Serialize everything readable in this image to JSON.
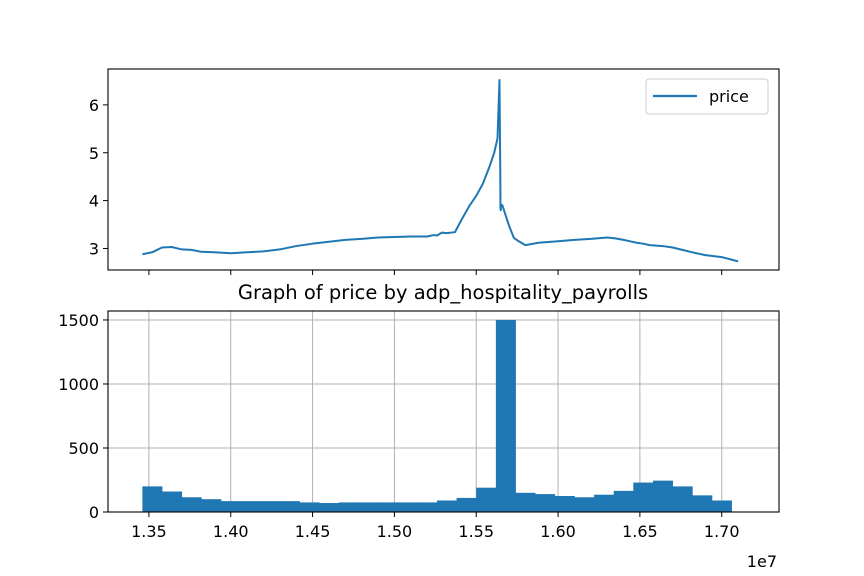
{
  "chart_data": [
    {
      "type": "line",
      "title": "",
      "xlabel": "",
      "ylabel": "",
      "ylim": [
        2.55,
        6.75
      ],
      "yticks": [
        3,
        4,
        5,
        6
      ],
      "ytick_labels": [
        "3",
        "4",
        "5",
        "6"
      ],
      "xlim": [
        13250000,
        17350000
      ],
      "xticks": [
        13500000,
        14000000,
        14500000,
        15000000,
        15500000,
        16000000,
        16500000,
        17000000
      ],
      "xtick_labels_visible": false,
      "grid": false,
      "legend": {
        "placement": "top-right",
        "entries": [
          "price"
        ]
      },
      "series": [
        {
          "name": "price",
          "color": "#1f77b4",
          "x": [
            13460000,
            13520000,
            13580000,
            13640000,
            13700000,
            13760000,
            13820000,
            13900000,
            14000000,
            14100000,
            14200000,
            14300000,
            14400000,
            14500000,
            14600000,
            14700000,
            14800000,
            14900000,
            15000000,
            15100000,
            15200000,
            15240000,
            15260000,
            15290000,
            15320000,
            15370000,
            15410000,
            15460000,
            15500000,
            15540000,
            15580000,
            15610000,
            15630000,
            15642000,
            15647000,
            15648000,
            15650000,
            15652000,
            15660000,
            15700000,
            15730000,
            15760000,
            15800000,
            15880000,
            16000000,
            16100000,
            16200000,
            16300000,
            16350000,
            16400000,
            16440000,
            16480000,
            16520000,
            16560000,
            16600000,
            16640000,
            16700000,
            16760000,
            16820000,
            16900000,
            17000000,
            17100000
          ],
          "y": [
            2.88,
            2.92,
            3.02,
            3.03,
            2.98,
            2.97,
            2.93,
            2.92,
            2.9,
            2.92,
            2.94,
            2.98,
            3.05,
            3.1,
            3.14,
            3.18,
            3.2,
            3.23,
            3.24,
            3.25,
            3.25,
            3.28,
            3.27,
            3.33,
            3.32,
            3.34,
            3.6,
            3.9,
            4.1,
            4.35,
            4.7,
            5.0,
            5.3,
            6.52,
            4.6,
            3.85,
            3.8,
            3.92,
            3.9,
            3.48,
            3.22,
            3.15,
            3.07,
            3.12,
            3.15,
            3.18,
            3.2,
            3.23,
            3.21,
            3.18,
            3.15,
            3.12,
            3.1,
            3.07,
            3.06,
            3.05,
            3.02,
            2.97,
            2.92,
            2.86,
            2.82,
            2.73
          ]
        }
      ]
    },
    {
      "type": "bar",
      "title": "Graph of price by adp_hospitality_payrolls",
      "xlabel": "",
      "ylabel": "",
      "offset_label": "1e7",
      "xlim": [
        13250000,
        17350000
      ],
      "ylim": [
        0,
        1570
      ],
      "xticks": [
        13500000,
        14000000,
        14500000,
        15000000,
        15500000,
        16000000,
        16500000,
        17000000
      ],
      "xtick_labels": [
        "1.35",
        "1.40",
        "1.45",
        "1.50",
        "1.55",
        "1.60",
        "1.65",
        "1.70"
      ],
      "yticks": [
        0,
        500,
        1000,
        1500
      ],
      "ytick_labels": [
        "0",
        "500",
        "1000",
        "1500"
      ],
      "grid": true,
      "bar_color": "#1f77b4",
      "bin_edges": [
        13460000,
        13580000,
        13700000,
        13820000,
        13940000,
        14060000,
        14180000,
        14300000,
        14420000,
        14540000,
        14660000,
        14780000,
        14900000,
        15020000,
        15140000,
        15260000,
        15380000,
        15500000,
        15620000,
        15740000,
        15860000,
        15980000,
        16100000,
        16220000,
        16340000,
        16460000,
        16580000,
        16700000,
        16820000,
        16940000,
        17060000
      ],
      "values": [
        200,
        160,
        115,
        100,
        85,
        85,
        85,
        85,
        75,
        70,
        75,
        75,
        75,
        75,
        75,
        90,
        110,
        190,
        1500,
        150,
        140,
        125,
        115,
        135,
        165,
        230,
        245,
        200,
        130,
        90
      ]
    }
  ]
}
